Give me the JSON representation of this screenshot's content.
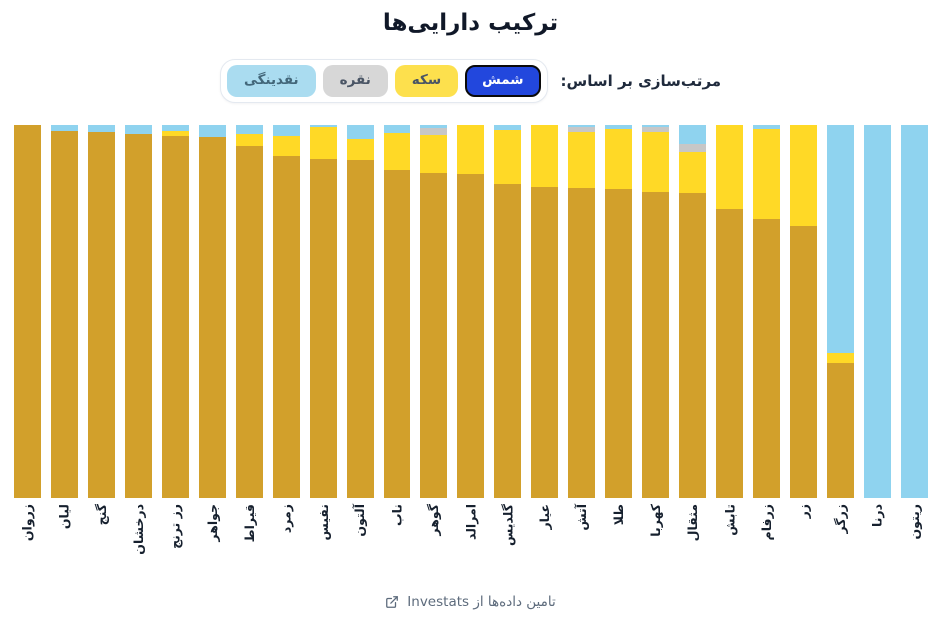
{
  "title": "ترکیب دارایی‌ها",
  "sort": {
    "label": "مرتب‌سازی بر اساس:",
    "options": [
      {
        "label": "شمش",
        "active": true,
        "bg": "#2247dd",
        "text_color": "#ffffff"
      },
      {
        "label": "سکه",
        "active": false,
        "bg": "#fde04d",
        "text_color": "#4a5565"
      },
      {
        "label": "نقره",
        "active": false,
        "bg": "#d7d7d7",
        "text_color": "#4a5565"
      },
      {
        "label": "نقدینگی",
        "active": false,
        "bg": "#aadcf0",
        "text_color": "#43677a"
      }
    ]
  },
  "footer": {
    "text": "تامین داده‌ها از Investats",
    "icon": "external-link-icon",
    "color": "#5d6b7c"
  },
  "chart_data": {
    "type": "bar",
    "stacked": true,
    "unit": "percent",
    "title": "ترکیب دارایی‌ها",
    "xlabel": "",
    "ylabel": "",
    "ylim": [
      0,
      100
    ],
    "grid": false,
    "y_axis_visible": false,
    "legend_position": "none",
    "order": "sorted by شمش (bullion) descending",
    "categories": [
      "زروان",
      "لیان",
      "گنج",
      "درخشان",
      "رز ترنج",
      "جواهر",
      "قیراط",
      "زمرد",
      "نفیس",
      "آلتون",
      "ناب",
      "گوهر",
      "امرالد",
      "گلدیس",
      "عیار",
      "آتش",
      "طلا",
      "کهربا",
      "مثقال",
      "تابش",
      "زرفام",
      "زر",
      "زرگر",
      "درنا",
      "ریتون"
    ],
    "series": [
      {
        "name": "نقدینگی",
        "key": "liquidity",
        "color": "#8fd3ef",
        "values": [
          0,
          1.6,
          1.9,
          2.4,
          1.6,
          3.2,
          2.4,
          2.9,
          0.5,
          3.8,
          2.1,
          0.8,
          0,
          1.3,
          0,
          0.5,
          1.1,
          0.5,
          5.1,
          0,
          1.1,
          0,
          61.1,
          100,
          100
        ]
      },
      {
        "name": "نقره",
        "key": "silver",
        "color": "#c7c7c7",
        "values": [
          0,
          0,
          0,
          0,
          0,
          0,
          0,
          0,
          0,
          0,
          0,
          1.9,
          0,
          0,
          0,
          1.3,
          0,
          1.3,
          2.1,
          0,
          0,
          0,
          0,
          0,
          0
        ]
      },
      {
        "name": "سکه",
        "key": "coin",
        "color": "#ffd926",
        "values": [
          0,
          0,
          0,
          0,
          1.3,
          0,
          3.2,
          5.4,
          8.6,
          5.6,
          9.9,
          10.2,
          13.1,
          14.5,
          16.6,
          15.1,
          16.1,
          16.1,
          11.0,
          22.5,
          24.1,
          27.1,
          2.7,
          0,
          0
        ]
      },
      {
        "name": "شمش",
        "key": "bullion",
        "color": "#d2a02b",
        "values": [
          100,
          98.4,
          98.1,
          97.6,
          97.1,
          96.8,
          94.4,
          91.7,
          90.9,
          90.6,
          88.0,
          87.1,
          86.9,
          84.2,
          83.4,
          83.1,
          82.8,
          82.1,
          81.8,
          77.5,
          74.8,
          72.9,
          36.2,
          0,
          0
        ]
      }
    ]
  }
}
